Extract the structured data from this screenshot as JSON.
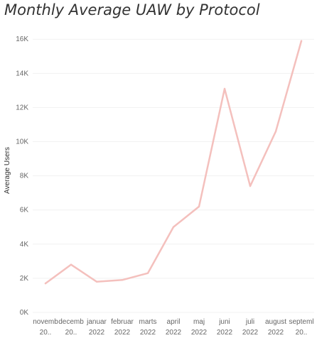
{
  "chart_data": {
    "type": "line",
    "title": "Monthly Average UAW by Protocol",
    "ylabel": "Average Users",
    "xlabel": "",
    "categories": [
      [
        "novemb",
        "20.."
      ],
      [
        "decemb",
        "20.."
      ],
      [
        "januar",
        "2022"
      ],
      [
        "februar",
        "2022"
      ],
      [
        "marts",
        "2022"
      ],
      [
        "april",
        "2022"
      ],
      [
        "maj",
        "2022"
      ],
      [
        "juni",
        "2022"
      ],
      [
        "juli",
        "2022"
      ],
      [
        "august",
        "2022"
      ],
      [
        "septeml",
        "20.."
      ]
    ],
    "values": [
      1700,
      2800,
      1800,
      1900,
      2300,
      5000,
      6200,
      13100,
      7400,
      10600,
      15900
    ],
    "y_ticks": [
      0,
      2000,
      4000,
      6000,
      8000,
      10000,
      12000,
      14000,
      16000
    ],
    "y_tick_labels": [
      "0K",
      "2K",
      "4K",
      "6K",
      "8K",
      "10K",
      "12K",
      "14K",
      "16K"
    ],
    "ylim": [
      0,
      16800
    ],
    "grid": true,
    "line_color": "#f4c0bd"
  }
}
